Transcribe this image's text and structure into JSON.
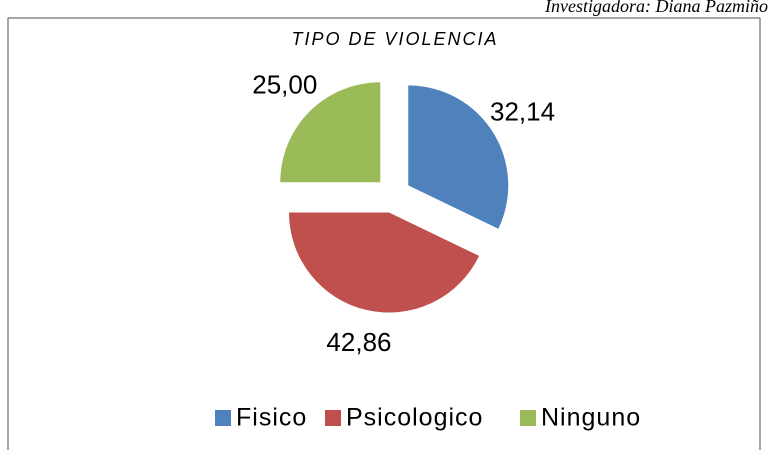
{
  "chart_data": {
    "type": "pie",
    "title": "TIPO DE VIOLENCIA",
    "annotation": "Investigadora: Diana Pazmiño",
    "categories": [
      "Fisico",
      "Psicologico",
      "Ninguno"
    ],
    "values": [
      32.14,
      42.86,
      25.0
    ],
    "value_labels": [
      "32,14",
      "42,86",
      "25,00"
    ],
    "colors": [
      "#4f81bd",
      "#c0504d",
      "#9bbb59"
    ],
    "legend": "bottom"
  }
}
